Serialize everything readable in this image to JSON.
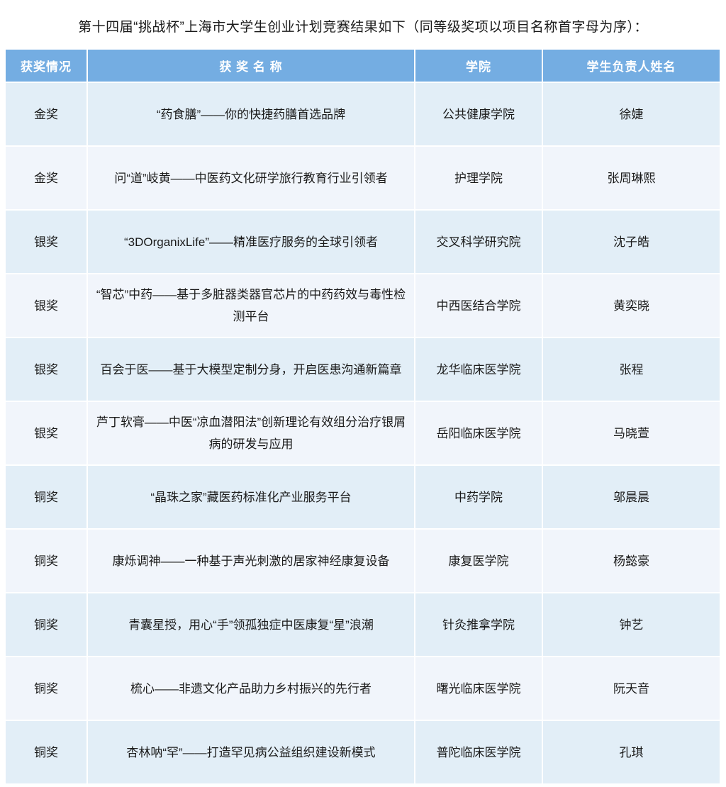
{
  "title": "第十四届“挑战杯”上海市大学生创业计划竞赛结果如下（同等级奖项以项目名称首字母为序）：",
  "colors": {
    "header_bg": "#74ADE2",
    "header_text": "#FFFFFF",
    "row_odd_bg": "#E2EEF7",
    "row_even_bg": "#F1F5FB",
    "body_text": "#1A1A1A"
  },
  "table": {
    "headers": [
      "获奖情况",
      "获 奖 名 称",
      "学院",
      "学生负责人姓名"
    ],
    "rows": [
      {
        "award": "金奖",
        "project": "“药食膳”——你的快捷药膳首选品牌",
        "college": "公共健康学院",
        "leader": "徐婕"
      },
      {
        "award": "金奖",
        "project": "问“道”岐黄——中医药文化研学旅行教育行业引领者",
        "college": "护理学院",
        "leader": "张周琳熙"
      },
      {
        "award": "银奖",
        "project": "“3DOrganixLife”——精准医疗服务的全球引领者",
        "college": "交叉科学研究院",
        "leader": "沈子皓"
      },
      {
        "award": "银奖",
        "project": "“智芯”中药——基于多脏器类器官芯片的中药药效与毒性检测平台",
        "college": "中西医结合学院",
        "leader": "黄奕晓"
      },
      {
        "award": "银奖",
        "project": "百会于医——基于大模型定制分身，开启医患沟通新篇章",
        "college": "龙华临床医学院",
        "leader": "张程"
      },
      {
        "award": "银奖",
        "project": "芦丁软膏——中医“凉血潜阳法”创新理论有效组分治疗银屑病的研发与应用",
        "college": "岳阳临床医学院",
        "leader": "马晓萱"
      },
      {
        "award": "铜奖",
        "project": "“晶珠之家”藏医药标准化产业服务平台",
        "college": "中药学院",
        "leader": "邬晨晨"
      },
      {
        "award": "铜奖",
        "project": "康烁调神——一种基于声光刺激的居家神经康复设备",
        "college": "康复医学院",
        "leader": "杨懿豪"
      },
      {
        "award": "铜奖",
        "project": "青囊星授，用心“手”领孤独症中医康复“星”浪潮",
        "college": "针灸推拿学院",
        "leader": "钟艺"
      },
      {
        "award": "铜奖",
        "project": "梳心——非遗文化产品助力乡村振兴的先行者",
        "college": "曙光临床医学院",
        "leader": "阮天音"
      },
      {
        "award": "铜奖",
        "project": "杏林呐“罕”——打造罕见病公益组织建设新模式",
        "college": "普陀临床医学院",
        "leader": "孔琪"
      }
    ]
  }
}
